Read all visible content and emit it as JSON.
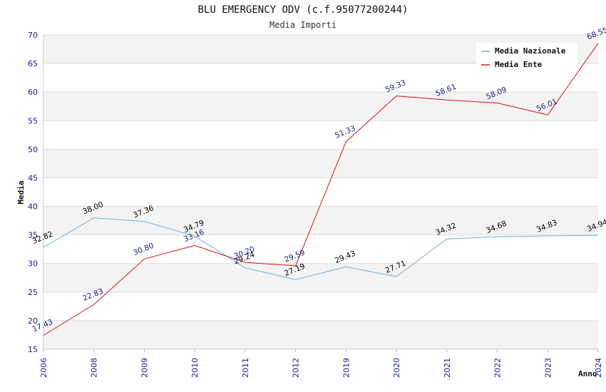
{
  "chart_data": {
    "type": "line",
    "title": "BLU EMERGENCY ODV (c.f.95077200244)",
    "subtitle": "Media Importi",
    "xlabel": "Anno",
    "ylabel": "Media",
    "categories": [
      "2006",
      "2008",
      "2009",
      "2010",
      "2011",
      "2012",
      "2019",
      "2020",
      "2021",
      "2022",
      "2023",
      "2024"
    ],
    "ylim": [
      15,
      70
    ],
    "yticks": [
      15,
      20,
      25,
      30,
      35,
      40,
      45,
      50,
      55,
      60,
      65,
      70
    ],
    "grid": true,
    "legend_position": "top-right",
    "series": [
      {
        "name": "Media Nazionale",
        "color": "#6aaee6",
        "label_color": "#000000",
        "values": [
          32.82,
          38.0,
          37.36,
          34.79,
          29.24,
          27.19,
          29.43,
          27.71,
          34.32,
          34.68,
          34.83,
          34.94
        ],
        "labels": [
          "32.82",
          "38.00",
          "37.36",
          "34.79",
          "29.24",
          "27.19",
          "29.43",
          "27.71",
          "34.32",
          "34.68",
          "34.83",
          "34.94"
        ]
      },
      {
        "name": "Media Ente",
        "color": "#e01010",
        "label_color": "#1a1a8c",
        "values": [
          17.43,
          22.83,
          30.8,
          33.16,
          30.2,
          29.59,
          51.33,
          59.33,
          58.61,
          58.09,
          56.01,
          68.55
        ],
        "labels": [
          "17.43",
          "22.83",
          "30.80",
          "33.16",
          "30.20",
          "29.59",
          "51.33",
          "59.33",
          "58.61",
          "58.09",
          "56.01",
          "68.55"
        ]
      }
    ]
  }
}
